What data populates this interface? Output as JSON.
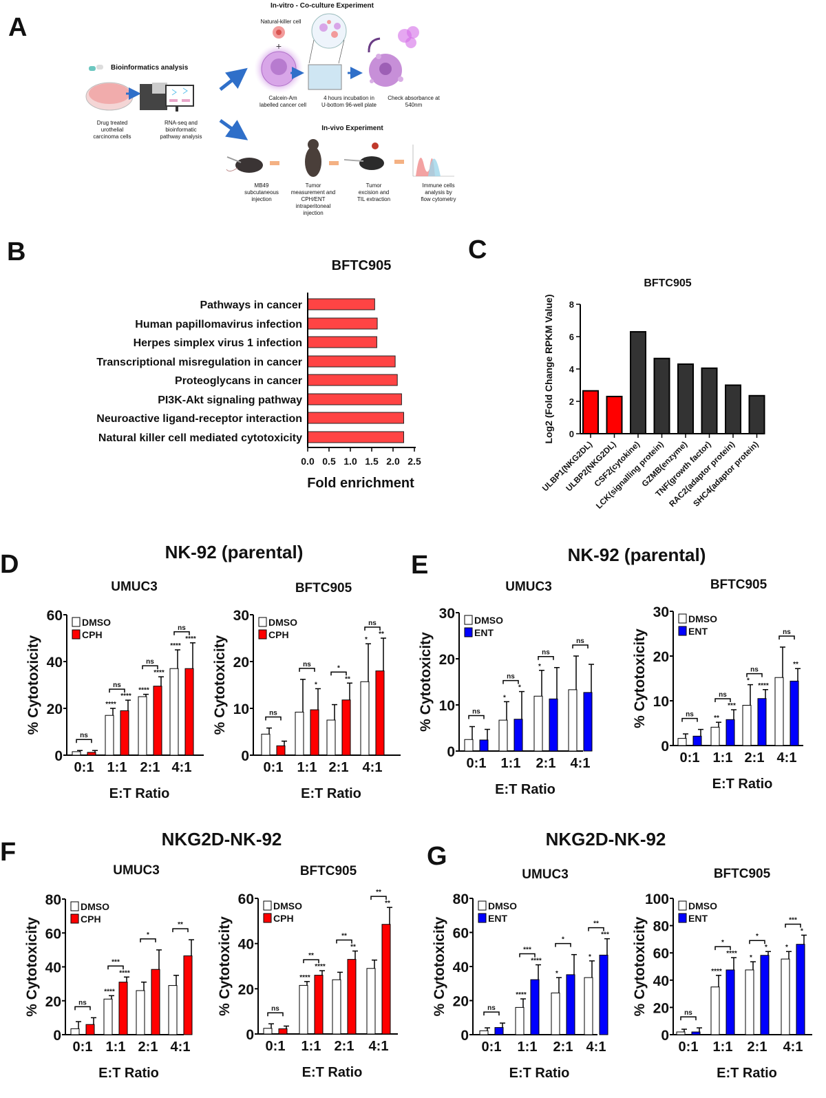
{
  "panel_labels": {
    "a": "A",
    "b": "B",
    "c": "C",
    "d": "D",
    "e": "E",
    "f": "F",
    "g": "G"
  },
  "panel_a": {
    "bioinformatics_title": "Bioinformatics analysis",
    "invitro_title": "In-vitro - Co-culture Experiment",
    "invivo_title": "In-vivo Experiment",
    "nk_cell_label": "Natural-killer  cell",
    "plus_sign": "+",
    "captions": {
      "drug_treated": [
        "Drug treated",
        "urothelial",
        "carcinoma cells"
      ],
      "rnaseq": [
        "RNA-seq and",
        "bioinformatic",
        "pathway analysis"
      ],
      "calcein": [
        "Calcein-Am",
        "labelled cancer cell"
      ],
      "incubation": [
        "4 hours incubation in",
        "U-bottom 96-well plate"
      ],
      "absorbance": [
        "Check absorbance at",
        "540nm"
      ],
      "mb49": [
        "MB49",
        "subcutaneous",
        "injection"
      ],
      "tumor_measure": [
        "Tumor",
        "measurement and",
        "CPH/ENT",
        "intraperitoneal",
        "injection"
      ],
      "excision": [
        "Tumor",
        "excision and",
        "TIL extraction"
      ],
      "flow": [
        "Immune cells",
        "analysis by",
        "flow cytometry"
      ]
    }
  },
  "colors": {
    "red": "#ff0000",
    "blue": "#0000ff",
    "dark": "#333333",
    "hbar": "#ff4444",
    "arrow_blue": "#2f6fc9",
    "arrow_orange": "#f4b183"
  },
  "chart_data": [
    {
      "id": "B",
      "type": "bar",
      "orientation": "horizontal",
      "title": "BFTC905",
      "xlabel": "Fold enrichment",
      "xlim": [
        0,
        2.5
      ],
      "xticks": [
        "0.0",
        "0.5",
        "1.0",
        "1.5",
        "2.0",
        "2.5"
      ],
      "categories": [
        "Pathways in cancer",
        "Human papillomavirus infection",
        "Herpes simplex virus 1 infection",
        "Transcriptional misregulation in cancer",
        "Proteoglycans in cancer",
        "PI3K-Akt signaling pathway",
        "Neuroactive ligand-receptor interaction",
        "Natural killer cell mediated cytotoxicity"
      ],
      "values": [
        1.57,
        1.63,
        1.62,
        2.05,
        2.1,
        2.2,
        2.25,
        2.25
      ],
      "color": "#ff4444",
      "grid": false
    },
    {
      "id": "C",
      "type": "bar",
      "title": "BFTC905",
      "ylabel": "Log2 (Fold Change RPKM Value)",
      "ylim": [
        0,
        8
      ],
      "yticks": [
        "0",
        "2",
        "4",
        "6",
        "8"
      ],
      "categories": [
        "ULBP1(NKG2DL)",
        "ULBP2(NKG2DL)",
        "CSF2(cytokine)",
        "LCK(signalling protein)",
        "GZMB(enzyme)",
        "TNF(growth factor)",
        "RAC2(adaptor protein)",
        "SHC4(adaptor protein)"
      ],
      "values": [
        2.65,
        2.3,
        6.3,
        4.65,
        4.3,
        4.05,
        3.0,
        2.35
      ],
      "bar_colors": [
        "#ff0000",
        "#ff0000",
        "#333333",
        "#333333",
        "#333333",
        "#333333",
        "#333333",
        "#333333"
      ],
      "grid": false
    },
    {
      "id": "D1",
      "panel": "D",
      "type": "bar",
      "group_title": "NK-92 (parental)",
      "title": "UMUC3",
      "xlabel": "E:T Ratio",
      "ylabel": "% Cytotoxicity",
      "ylim": [
        0,
        60
      ],
      "yticks": [
        "0",
        "20",
        "40",
        "60"
      ],
      "categories": [
        "0:1",
        "1:1",
        "2:1",
        "4:1"
      ],
      "legend": "top-left",
      "series": [
        {
          "name": "DMSO",
          "color": "#ffffff",
          "values": [
            1.5,
            17,
            25,
            37
          ],
          "error_upper": [
            2,
            20,
            26,
            45
          ],
          "significance": [
            "",
            "****",
            "****",
            "****"
          ]
        },
        {
          "name": "CPH",
          "color": "#ff0000",
          "values": [
            1.2,
            19,
            29.5,
            37
          ],
          "error_upper": [
            2,
            23.5,
            33.5,
            48
          ],
          "significance": [
            "",
            "****",
            "****",
            "****"
          ]
        }
      ],
      "comparisons": [
        "ns",
        "ns",
        "ns",
        "ns"
      ]
    },
    {
      "id": "D2",
      "panel": "D",
      "type": "bar",
      "title": "BFTC905",
      "xlabel": "E:T Ratio",
      "ylabel": "% Cytotoxicity",
      "ylim": [
        0,
        30
      ],
      "yticks": [
        "0",
        "10",
        "20",
        "30"
      ],
      "categories": [
        "0:1",
        "1:1",
        "2:1",
        "4:1"
      ],
      "legend": "top-left",
      "series": [
        {
          "name": "DMSO",
          "color": "#ffffff",
          "values": [
            4.5,
            9.2,
            7.5,
            15.7
          ],
          "error_upper": [
            5.8,
            16.2,
            10.8,
            23.8
          ],
          "significance": [
            "",
            "",
            "",
            "*"
          ]
        },
        {
          "name": "CPH",
          "color": "#ff0000",
          "values": [
            2,
            9.7,
            11.8,
            18
          ],
          "error_upper": [
            3,
            14.2,
            15.4,
            25
          ],
          "significance": [
            "",
            "*",
            "**",
            "**"
          ]
        }
      ],
      "comparisons": [
        "ns",
        "ns",
        "*",
        "ns"
      ]
    },
    {
      "id": "E1",
      "panel": "E",
      "type": "bar",
      "group_title": "NK-92 (parental)",
      "title": "UMUC3",
      "xlabel": "E:T Ratio",
      "ylabel": "% Cytotoxicity",
      "ylim": [
        0,
        30
      ],
      "yticks": [
        "0",
        "10",
        "20",
        "30"
      ],
      "categories": [
        "0:1",
        "1:1",
        "2:1",
        "4:1"
      ],
      "legend": "top-left",
      "series": [
        {
          "name": "DMSO",
          "color": "#ffffff",
          "values": [
            2.5,
            6.7,
            11.9,
            13.3
          ],
          "error_upper": [
            5.3,
            10.7,
            17.5,
            20.6
          ],
          "significance": [
            "",
            "*",
            "*",
            ""
          ]
        },
        {
          "name": "ENT",
          "color": "#0000ff",
          "values": [
            2.4,
            6.9,
            11.3,
            12.7
          ],
          "error_upper": [
            4.7,
            12.9,
            18.1,
            18.8
          ],
          "significance": [
            "",
            "*",
            "",
            ""
          ]
        }
      ],
      "comparisons": [
        "ns",
        "ns",
        "ns",
        "ns"
      ]
    },
    {
      "id": "E2",
      "panel": "E",
      "type": "bar",
      "title": "BFTC905",
      "xlabel": "E:T Ratio",
      "ylabel": "% Cytotoxicity",
      "ylim": [
        0,
        30
      ],
      "yticks": [
        "0",
        "10",
        "20",
        "30"
      ],
      "categories": [
        "0:1",
        "1:1",
        "2:1",
        "4:1"
      ],
      "legend": "top-left",
      "series": [
        {
          "name": "DMSO",
          "color": "#ffffff",
          "values": [
            1.6,
            4.1,
            9,
            15.2
          ],
          "error_upper": [
            2.6,
            5.2,
            13.6,
            22
          ],
          "significance": [
            "",
            "**",
            "*",
            ""
          ]
        },
        {
          "name": "ENT",
          "color": "#0000ff",
          "values": [
            2.1,
            5.8,
            10.5,
            14.4
          ],
          "error_upper": [
            3.6,
            8,
            12.5,
            17.2
          ],
          "significance": [
            "",
            "***",
            "****",
            "**"
          ]
        }
      ],
      "comparisons": [
        "ns",
        "ns",
        "ns",
        "ns"
      ]
    },
    {
      "id": "F1",
      "panel": "F",
      "type": "bar",
      "group_title": "NKG2D-NK-92",
      "title": "UMUC3",
      "xlabel": "E:T Ratio",
      "ylabel": "% Cytotoxicity",
      "ylim": [
        0,
        80
      ],
      "yticks": [
        "0",
        "20",
        "40",
        "60",
        "80"
      ],
      "categories": [
        "0:1",
        "1:1",
        "2:1",
        "4:1"
      ],
      "legend": "top-left",
      "series": [
        {
          "name": "DMSO",
          "color": "#ffffff",
          "values": [
            3.5,
            21,
            26,
            29
          ],
          "error_upper": [
            7.7,
            23,
            31,
            35
          ],
          "significance": [
            "",
            "****",
            "",
            ""
          ]
        },
        {
          "name": "CPH",
          "color": "#ff0000",
          "values": [
            6,
            31,
            38.5,
            46.5
          ],
          "error_upper": [
            10,
            34,
            50,
            56
          ],
          "significance": [
            "",
            "****",
            "",
            ""
          ]
        }
      ],
      "comparisons": [
        "ns",
        "***",
        "*",
        "**"
      ]
    },
    {
      "id": "F2",
      "panel": "F",
      "type": "bar",
      "title": "BFTC905",
      "xlabel": "E:T Ratio",
      "ylabel": "% Cytotoxicity",
      "ylim": [
        0,
        60
      ],
      "yticks": [
        "0",
        "20",
        "40",
        "60"
      ],
      "categories": [
        "0:1",
        "1:1",
        "2:1",
        "4:1"
      ],
      "legend": "top-left",
      "series": [
        {
          "name": "DMSO",
          "color": "#ffffff",
          "values": [
            2.5,
            21.5,
            24,
            29
          ],
          "error_upper": [
            4.5,
            23.2,
            27.3,
            32.7
          ],
          "significance": [
            "",
            "****",
            "",
            ""
          ]
        },
        {
          "name": "CPH",
          "color": "#ff0000",
          "values": [
            2.3,
            26,
            33,
            48.5
          ],
          "error_upper": [
            3.5,
            28,
            36.7,
            56
          ],
          "significance": [
            "",
            "****",
            "**",
            "**"
          ]
        }
      ],
      "comparisons": [
        "ns",
        "**",
        "**",
        "**"
      ]
    },
    {
      "id": "G1",
      "panel": "G",
      "type": "bar",
      "group_title": "NKG2D-NK-92",
      "title": "UMUC3",
      "xlabel": "E:T Ratio",
      "ylabel": "% Cytotoxicity",
      "ylim": [
        0,
        80
      ],
      "yticks": [
        "0",
        "20",
        "40",
        "60",
        "80"
      ],
      "categories": [
        "0:1",
        "1:1",
        "2:1",
        "4:1"
      ],
      "legend": "top-left",
      "series": [
        {
          "name": "DMSO",
          "color": "#ffffff",
          "values": [
            2.3,
            16,
            24.5,
            33.5
          ],
          "error_upper": [
            4,
            21,
            33.5,
            43.3
          ],
          "significance": [
            "",
            "****",
            "*",
            "*"
          ]
        },
        {
          "name": "ENT",
          "color": "#0000ff",
          "values": [
            4.2,
            32.3,
            35.2,
            46.7
          ],
          "error_upper": [
            6.8,
            41,
            47,
            56.3
          ],
          "significance": [
            "",
            "****",
            "",
            "***"
          ]
        }
      ],
      "comparisons": [
        "ns",
        "***",
        "*",
        "**"
      ]
    },
    {
      "id": "G2",
      "panel": "G",
      "type": "bar",
      "title": "BFTC905",
      "xlabel": "E:T Ratio",
      "ylabel": "% Cytotoxicity",
      "ylim": [
        0,
        100
      ],
      "yticks": [
        "0",
        "20",
        "40",
        "60",
        "80",
        "100"
      ],
      "categories": [
        "0:1",
        "1:1",
        "2:1",
        "4:1"
      ],
      "legend": "top-left",
      "series": [
        {
          "name": "DMSO",
          "color": "#ffffff",
          "values": [
            2,
            35,
            47.5,
            55.5
          ],
          "error_upper": [
            4,
            43.5,
            53.5,
            61
          ],
          "significance": [
            "",
            "****",
            "*",
            "*"
          ]
        },
        {
          "name": "ENT",
          "color": "#0000ff",
          "values": [
            2,
            47.5,
            58.2,
            66.3
          ],
          "error_upper": [
            5,
            56.5,
            61,
            73
          ],
          "significance": [
            "",
            "****",
            "*",
            "*"
          ]
        }
      ],
      "comparisons": [
        "ns",
        "*",
        "*",
        "***"
      ]
    }
  ]
}
